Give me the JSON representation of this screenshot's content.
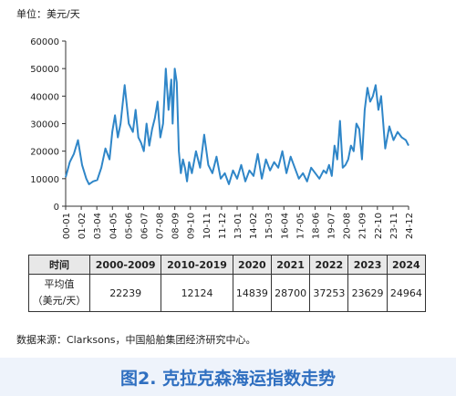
{
  "unit_label": "单位：美元/天",
  "chart_data": {
    "type": "line",
    "title": "",
    "xlabel": "",
    "ylabel": "",
    "ylim": [
      0,
      60000
    ],
    "yticks": [
      0,
      10000,
      20000,
      30000,
      40000,
      50000,
      60000
    ],
    "ytick_labels": [
      "0",
      "10000",
      "20000",
      "30000",
      "40000",
      "50000",
      "60000"
    ],
    "xlim": [
      2000.0,
      2025.0
    ],
    "xtick_labels": [
      "00-01",
      "01-02",
      "03-04",
      "04-05",
      "05-06",
      "06-07",
      "07-08",
      "08-09",
      "09-10",
      "10-11",
      "11-12",
      "13-01",
      "14-02",
      "15-03",
      "16-04",
      "17-05",
      "18-06",
      "19-07",
      "20-08",
      "21-09",
      "22-10",
      "23-11",
      "24-12"
    ],
    "grid": false,
    "color": "#2f86c8",
    "series": [
      {
        "name": "",
        "x": [
          2000.0,
          2000.3,
          2000.6,
          2000.9,
          2001.2,
          2001.5,
          2001.7,
          2002.0,
          2002.3,
          2002.6,
          2002.9,
          2003.2,
          2003.4,
          2003.6,
          2003.8,
          2004.0,
          2004.3,
          2004.6,
          2004.9,
          2005.1,
          2005.3,
          2005.5,
          2005.7,
          2005.9,
          2006.1,
          2006.3,
          2006.5,
          2006.7,
          2006.9,
          2007.1,
          2007.3,
          2007.5,
          2007.7,
          2007.8,
          2007.95,
          2008.1,
          2008.25,
          2008.4,
          2008.55,
          2008.7,
          2008.85,
          2009.0,
          2009.2,
          2009.5,
          2009.8,
          2010.1,
          2010.4,
          2010.7,
          2011.0,
          2011.3,
          2011.6,
          2011.9,
          2012.2,
          2012.5,
          2012.8,
          2013.1,
          2013.4,
          2013.7,
          2014.0,
          2014.3,
          2014.6,
          2014.9,
          2015.2,
          2015.5,
          2015.8,
          2016.1,
          2016.4,
          2016.7,
          2017.0,
          2017.3,
          2017.6,
          2017.9,
          2018.2,
          2018.5,
          2018.8,
          2019.0,
          2019.2,
          2019.4,
          2019.6,
          2019.8,
          2020.0,
          2020.2,
          2020.4,
          2020.6,
          2020.8,
          2021.0,
          2021.2,
          2021.4,
          2021.6,
          2021.8,
          2022.0,
          2022.2,
          2022.4,
          2022.6,
          2022.8,
          2023.0,
          2023.3,
          2023.6,
          2023.9,
          2024.2,
          2024.5,
          2024.8,
          2025.0
        ],
        "y": [
          10500,
          16000,
          19000,
          24000,
          15000,
          10000,
          8000,
          9000,
          9500,
          14000,
          21000,
          17000,
          27000,
          33000,
          25000,
          30000,
          44000,
          30000,
          27000,
          35000,
          25000,
          23000,
          20000,
          30000,
          22000,
          28000,
          32000,
          38000,
          25000,
          30000,
          50000,
          35000,
          46000,
          30000,
          50000,
          45000,
          20000,
          12000,
          17000,
          14000,
          9000,
          16000,
          12000,
          20000,
          14000,
          26000,
          15000,
          12000,
          18000,
          10000,
          12000,
          8000,
          13000,
          10000,
          15000,
          9000,
          13000,
          11000,
          19000,
          10000,
          17000,
          13000,
          16000,
          14000,
          20000,
          12000,
          18000,
          14000,
          10000,
          12000,
          9000,
          14000,
          12000,
          10000,
          13000,
          12000,
          15000,
          11000,
          22000,
          17000,
          31000,
          14000,
          15000,
          17000,
          22000,
          20000,
          30000,
          28000,
          17000,
          35000,
          43000,
          38000,
          40000,
          44000,
          35000,
          40000,
          21000,
          29000,
          24000,
          27000,
          25000,
          24000,
          22000
        ]
      }
    ]
  },
  "table": {
    "header": [
      "时间",
      "2000-2009",
      "2010-2019",
      "2020",
      "2021",
      "2022",
      "2023",
      "2024"
    ],
    "row_label_lines": [
      "平均值",
      "（美元/天）"
    ],
    "values": [
      "22239",
      "12124",
      "14839",
      "28700",
      "37253",
      "23629",
      "24964"
    ]
  },
  "source": "数据来源：Clarksons，中国船舶集团经济研究中心。",
  "caption": "图2. 克拉克森海运指数走势"
}
